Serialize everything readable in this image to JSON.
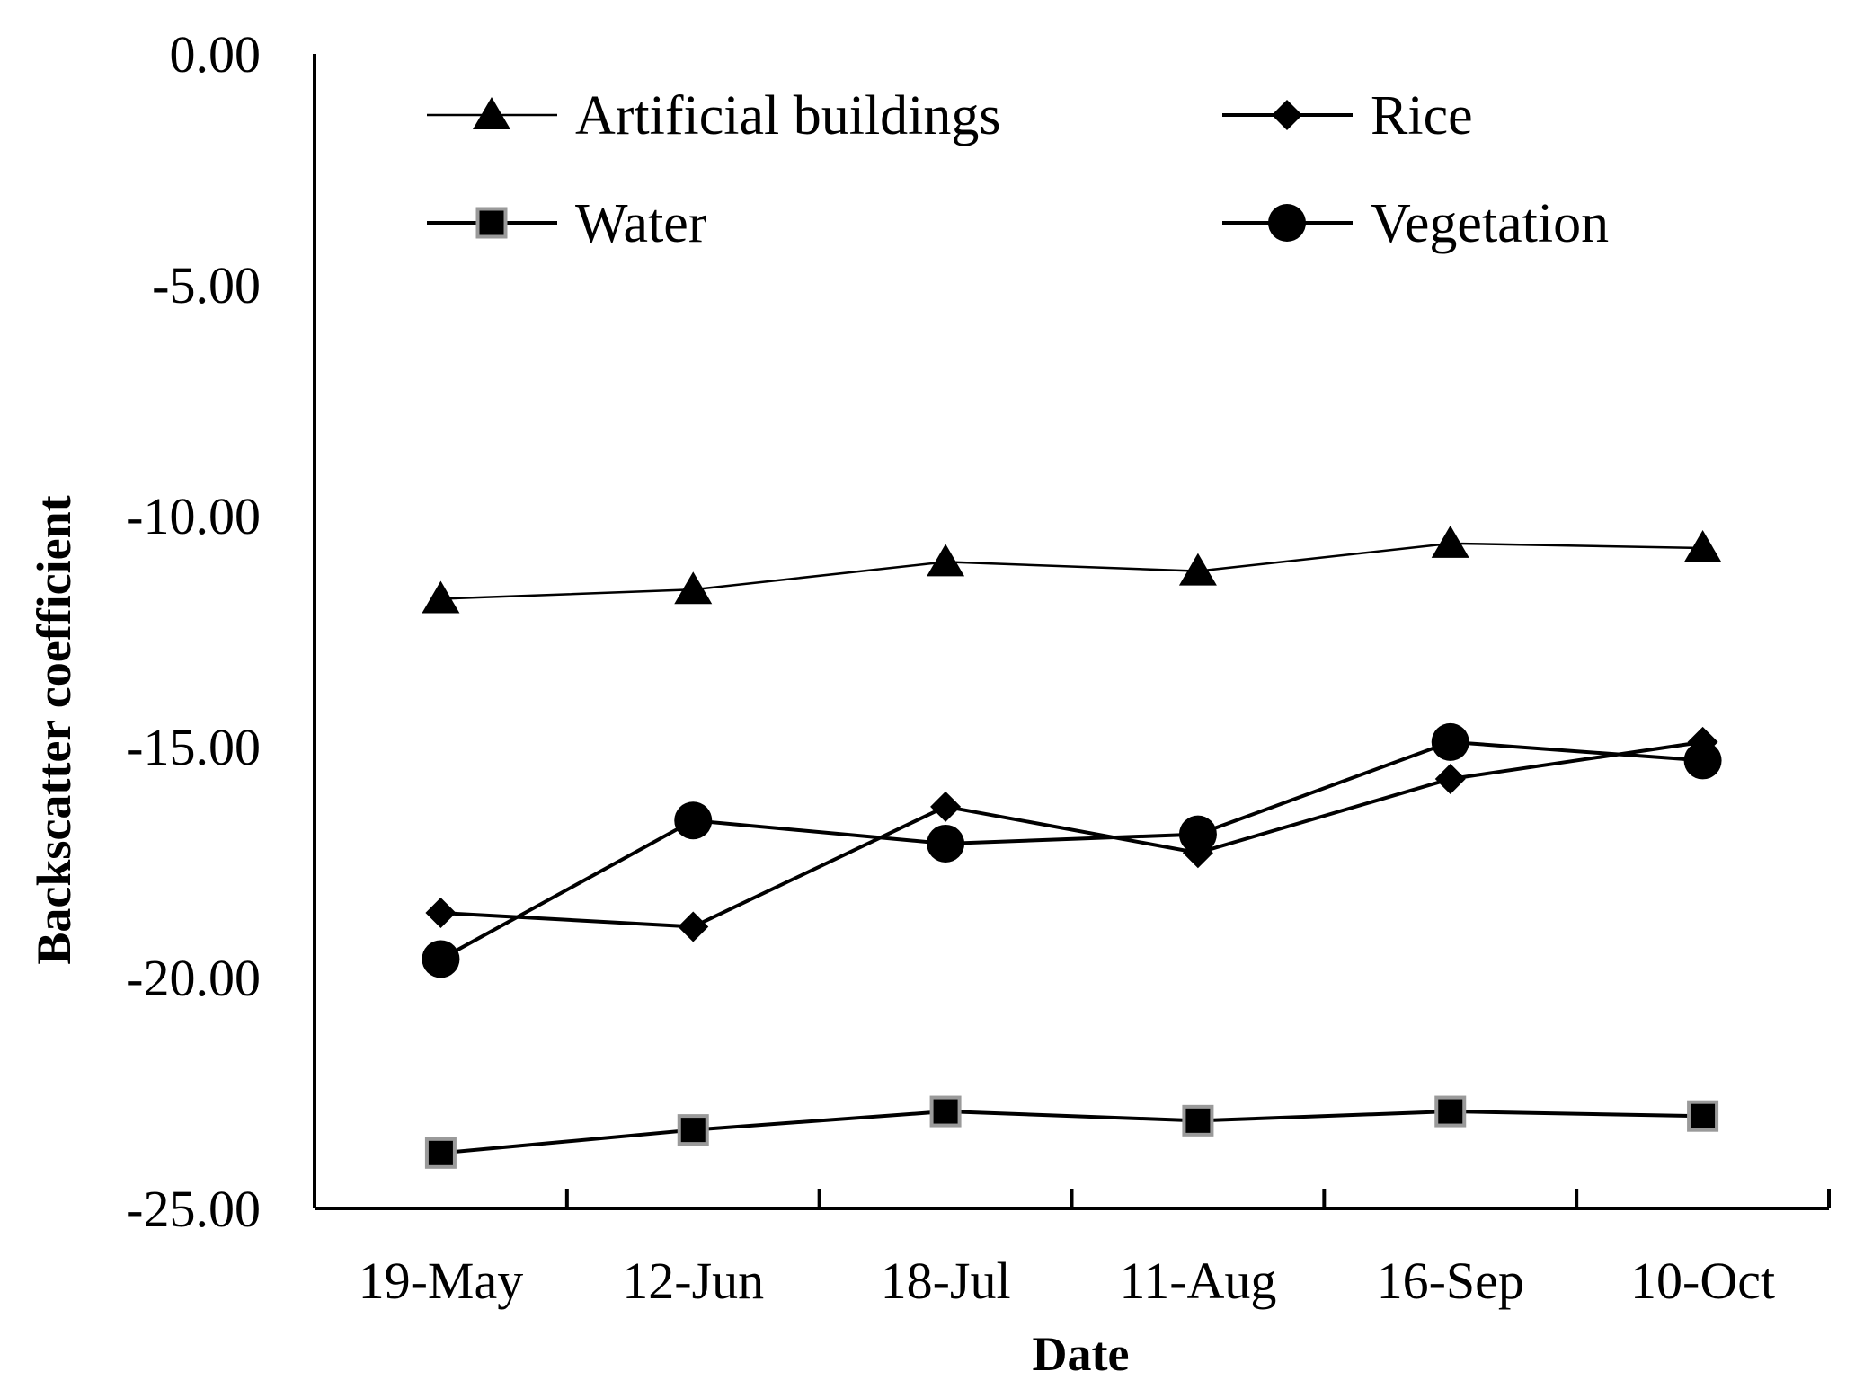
{
  "chart_data": {
    "type": "line",
    "title": "",
    "xlabel": "Date",
    "ylabel": "Backscatter coefficient",
    "categories": [
      "19-May",
      "12-Jun",
      "18-Jul",
      "11-Aug",
      "16-Sep",
      "10-Oct"
    ],
    "ylim": [
      -25,
      0
    ],
    "yticks": [
      0,
      -5,
      -10,
      -15,
      -20,
      -25
    ],
    "ytick_labels": [
      "0.00",
      "-5.00",
      "-10.00",
      "-15.00",
      "-20.00",
      "-25.00"
    ],
    "grid": false,
    "legend_position": "top",
    "series": [
      {
        "name": "Artificial buildings",
        "marker": "triangle",
        "values": [
          -11.8,
          -11.6,
          -11.0,
          -11.2,
          -10.6,
          -10.7
        ]
      },
      {
        "name": "Rice",
        "marker": "diamond",
        "values": [
          -18.6,
          -18.9,
          -16.3,
          -17.3,
          -15.7,
          -14.9
        ]
      },
      {
        "name": "Water",
        "marker": "square",
        "values": [
          -23.8,
          -23.3,
          -22.9,
          -23.1,
          -22.9,
          -23.0
        ]
      },
      {
        "name": "Vegetation",
        "marker": "circle",
        "values": [
          -19.6,
          -16.6,
          -17.1,
          -16.9,
          -14.9,
          -15.3
        ]
      }
    ],
    "colors": {
      "line": "#000000",
      "marker": "#000000",
      "water_marker_edge": "#9a9a9a"
    }
  }
}
